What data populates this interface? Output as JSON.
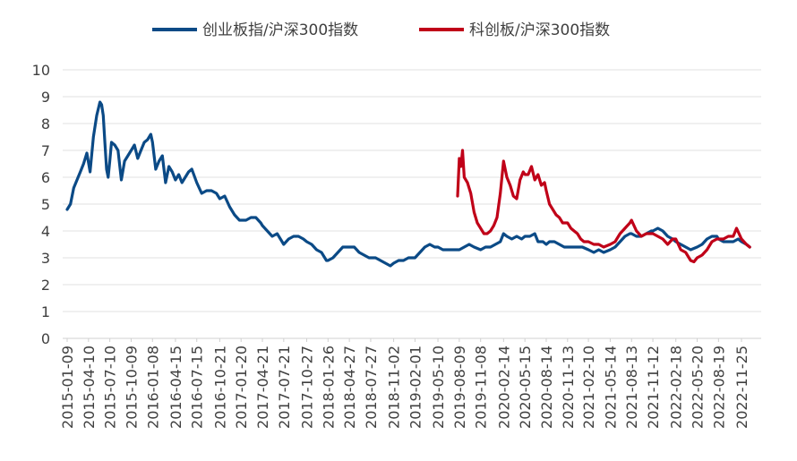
{
  "chart_data": {
    "type": "line",
    "title": "",
    "xlabel": "",
    "ylabel": "",
    "ylim": [
      0,
      10
    ],
    "yticks": [
      0,
      1,
      2,
      3,
      4,
      5,
      6,
      7,
      8,
      9,
      10
    ],
    "grid": true,
    "legend_position": "top",
    "x_ticks": [
      "2015-01-09",
      "2015-04-10",
      "2015-07-10",
      "2015-10-09",
      "2016-01-08",
      "2016-04-15",
      "2016-07-15",
      "2016-10-21",
      "2017-01-20",
      "2017-04-21",
      "2017-07-21",
      "2017-10-27",
      "2018-01-26",
      "2018-04-27",
      "2018-07-27",
      "2018-11-02",
      "2019-02-01",
      "2019-05-10",
      "2019-08-09",
      "2019-11-08",
      "2020-02-14",
      "2020-05-15",
      "2020-08-14",
      "2020-11-13",
      "2021-02-10",
      "2021-05-14",
      "2021-08-13",
      "2021-11-12",
      "2022-02-18",
      "2022-05-20",
      "2022-08-19",
      "2022-11-25"
    ],
    "series": [
      {
        "name": "创业板指/沪深300指数",
        "color": "#0b4a86",
        "points": [
          [
            "2015-01-09",
            4.8
          ],
          [
            "2015-01-23",
            5.0
          ],
          [
            "2015-02-06",
            5.6
          ],
          [
            "2015-02-20",
            5.9
          ],
          [
            "2015-03-06",
            6.2
          ],
          [
            "2015-03-20",
            6.5
          ],
          [
            "2015-04-03",
            6.9
          ],
          [
            "2015-04-17",
            6.2
          ],
          [
            "2015-05-01",
            7.5
          ],
          [
            "2015-05-15",
            8.3
          ],
          [
            "2015-05-29",
            8.8
          ],
          [
            "2015-06-05",
            8.7
          ],
          [
            "2015-06-12",
            8.3
          ],
          [
            "2015-06-19",
            7.3
          ],
          [
            "2015-06-26",
            6.3
          ],
          [
            "2015-07-03",
            6.0
          ],
          [
            "2015-07-10",
            6.6
          ],
          [
            "2015-07-17",
            7.3
          ],
          [
            "2015-07-31",
            7.2
          ],
          [
            "2015-08-14",
            7.0
          ],
          [
            "2015-08-28",
            5.9
          ],
          [
            "2015-09-11",
            6.6
          ],
          [
            "2015-09-25",
            6.8
          ],
          [
            "2015-10-09",
            7.0
          ],
          [
            "2015-10-23",
            7.2
          ],
          [
            "2015-11-06",
            6.7
          ],
          [
            "2015-11-20",
            7.0
          ],
          [
            "2015-12-04",
            7.3
          ],
          [
            "2015-12-18",
            7.4
          ],
          [
            "2016-01-01",
            7.6
          ],
          [
            "2016-01-08",
            7.3
          ],
          [
            "2016-01-22",
            6.3
          ],
          [
            "2016-02-05",
            6.6
          ],
          [
            "2016-02-19",
            6.8
          ],
          [
            "2016-03-04",
            5.8
          ],
          [
            "2016-03-18",
            6.4
          ],
          [
            "2016-04-01",
            6.2
          ],
          [
            "2016-04-15",
            5.9
          ],
          [
            "2016-04-29",
            6.1
          ],
          [
            "2016-05-13",
            5.8
          ],
          [
            "2016-05-27",
            6.0
          ],
          [
            "2016-06-10",
            6.2
          ],
          [
            "2016-06-24",
            6.3
          ],
          [
            "2016-07-15",
            5.8
          ],
          [
            "2016-08-05",
            5.4
          ],
          [
            "2016-08-26",
            5.5
          ],
          [
            "2016-09-16",
            5.5
          ],
          [
            "2016-10-07",
            5.4
          ],
          [
            "2016-10-21",
            5.2
          ],
          [
            "2016-11-11",
            5.3
          ],
          [
            "2016-12-02",
            4.9
          ],
          [
            "2016-12-23",
            4.6
          ],
          [
            "2017-01-13",
            4.4
          ],
          [
            "2017-01-20",
            4.4
          ],
          [
            "2017-02-10",
            4.4
          ],
          [
            "2017-03-03",
            4.5
          ],
          [
            "2017-03-24",
            4.5
          ],
          [
            "2017-04-14",
            4.3
          ],
          [
            "2017-04-21",
            4.2
          ],
          [
            "2017-05-12",
            4.0
          ],
          [
            "2017-06-02",
            3.8
          ],
          [
            "2017-06-23",
            3.9
          ],
          [
            "2017-07-14",
            3.6
          ],
          [
            "2017-07-21",
            3.5
          ],
          [
            "2017-08-11",
            3.7
          ],
          [
            "2017-09-01",
            3.8
          ],
          [
            "2017-09-22",
            3.8
          ],
          [
            "2017-10-13",
            3.7
          ],
          [
            "2017-10-27",
            3.6
          ],
          [
            "2017-11-17",
            3.5
          ],
          [
            "2017-12-08",
            3.3
          ],
          [
            "2017-12-29",
            3.2
          ],
          [
            "2018-01-19",
            2.9
          ],
          [
            "2018-01-26",
            2.9
          ],
          [
            "2018-02-16",
            3.0
          ],
          [
            "2018-03-09",
            3.2
          ],
          [
            "2018-03-30",
            3.4
          ],
          [
            "2018-04-20",
            3.4
          ],
          [
            "2018-04-27",
            3.4
          ],
          [
            "2018-05-18",
            3.4
          ],
          [
            "2018-06-08",
            3.2
          ],
          [
            "2018-06-29",
            3.1
          ],
          [
            "2018-07-20",
            3.0
          ],
          [
            "2018-07-27",
            3.0
          ],
          [
            "2018-08-17",
            3.0
          ],
          [
            "2018-09-07",
            2.9
          ],
          [
            "2018-09-28",
            2.8
          ],
          [
            "2018-10-19",
            2.7
          ],
          [
            "2018-11-02",
            2.8
          ],
          [
            "2018-11-23",
            2.9
          ],
          [
            "2018-12-14",
            2.9
          ],
          [
            "2019-01-04",
            3.0
          ],
          [
            "2019-02-01",
            3.0
          ],
          [
            "2019-02-22",
            3.2
          ],
          [
            "2019-03-15",
            3.4
          ],
          [
            "2019-04-05",
            3.5
          ],
          [
            "2019-04-26",
            3.4
          ],
          [
            "2019-05-10",
            3.4
          ],
          [
            "2019-05-31",
            3.3
          ],
          [
            "2019-06-21",
            3.3
          ],
          [
            "2019-07-12",
            3.3
          ],
          [
            "2019-08-09",
            3.3
          ],
          [
            "2019-08-30",
            3.4
          ],
          [
            "2019-09-20",
            3.5
          ],
          [
            "2019-10-11",
            3.4
          ],
          [
            "2019-11-08",
            3.3
          ],
          [
            "2019-11-29",
            3.4
          ],
          [
            "2019-12-20",
            3.4
          ],
          [
            "2020-01-10",
            3.5
          ],
          [
            "2020-01-31",
            3.6
          ],
          [
            "2020-02-14",
            3.9
          ],
          [
            "2020-02-28",
            3.8
          ],
          [
            "2020-03-20",
            3.7
          ],
          [
            "2020-04-10",
            3.8
          ],
          [
            "2020-05-01",
            3.7
          ],
          [
            "2020-05-15",
            3.8
          ],
          [
            "2020-06-05",
            3.8
          ],
          [
            "2020-06-26",
            3.9
          ],
          [
            "2020-07-10",
            3.6
          ],
          [
            "2020-07-31",
            3.6
          ],
          [
            "2020-08-14",
            3.5
          ],
          [
            "2020-08-28",
            3.6
          ],
          [
            "2020-09-18",
            3.6
          ],
          [
            "2020-10-09",
            3.5
          ],
          [
            "2020-10-30",
            3.4
          ],
          [
            "2020-11-13",
            3.4
          ],
          [
            "2020-12-04",
            3.4
          ],
          [
            "2020-12-25",
            3.4
          ],
          [
            "2021-01-15",
            3.4
          ],
          [
            "2021-02-10",
            3.3
          ],
          [
            "2021-03-05",
            3.2
          ],
          [
            "2021-03-26",
            3.3
          ],
          [
            "2021-04-16",
            3.2
          ],
          [
            "2021-05-14",
            3.3
          ],
          [
            "2021-06-04",
            3.4
          ],
          [
            "2021-06-25",
            3.6
          ],
          [
            "2021-07-16",
            3.8
          ],
          [
            "2021-08-06",
            3.9
          ],
          [
            "2021-08-13",
            3.9
          ],
          [
            "2021-09-03",
            3.8
          ],
          [
            "2021-09-24",
            3.8
          ],
          [
            "2021-10-15",
            3.9
          ],
          [
            "2021-11-05",
            4.0
          ],
          [
            "2021-11-12",
            4.0
          ],
          [
            "2021-12-03",
            4.1
          ],
          [
            "2021-12-24",
            4.0
          ],
          [
            "2022-01-14",
            3.8
          ],
          [
            "2022-02-04",
            3.7
          ],
          [
            "2022-02-18",
            3.6
          ],
          [
            "2022-03-11",
            3.5
          ],
          [
            "2022-04-01",
            3.4
          ],
          [
            "2022-04-22",
            3.3
          ],
          [
            "2022-05-20",
            3.4
          ],
          [
            "2022-06-10",
            3.5
          ],
          [
            "2022-07-01",
            3.7
          ],
          [
            "2022-07-22",
            3.8
          ],
          [
            "2022-08-12",
            3.8
          ],
          [
            "2022-08-19",
            3.7
          ],
          [
            "2022-09-09",
            3.6
          ],
          [
            "2022-09-30",
            3.6
          ],
          [
            "2022-10-21",
            3.6
          ],
          [
            "2022-11-11",
            3.7
          ],
          [
            "2022-11-25",
            3.6
          ],
          [
            "2022-12-16",
            3.5
          ],
          [
            "2022-12-30",
            3.4
          ]
        ]
      },
      {
        "name": "科创板/沪深300指数",
        "color": "#c00018",
        "points": [
          [
            "2019-08-02",
            5.3
          ],
          [
            "2019-08-09",
            6.7
          ],
          [
            "2019-08-16",
            6.4
          ],
          [
            "2019-08-23",
            7.0
          ],
          [
            "2019-08-30",
            6.0
          ],
          [
            "2019-09-13",
            5.8
          ],
          [
            "2019-09-27",
            5.4
          ],
          [
            "2019-10-11",
            4.7
          ],
          [
            "2019-10-25",
            4.3
          ],
          [
            "2019-11-08",
            4.1
          ],
          [
            "2019-11-22",
            3.9
          ],
          [
            "2019-12-06",
            3.9
          ],
          [
            "2019-12-20",
            4.0
          ],
          [
            "2020-01-03",
            4.2
          ],
          [
            "2020-01-17",
            4.5
          ],
          [
            "2020-01-31",
            5.4
          ],
          [
            "2020-02-14",
            6.6
          ],
          [
            "2020-02-28",
            6.0
          ],
          [
            "2020-03-13",
            5.7
          ],
          [
            "2020-03-27",
            5.3
          ],
          [
            "2020-04-10",
            5.2
          ],
          [
            "2020-04-24",
            5.9
          ],
          [
            "2020-05-08",
            6.2
          ],
          [
            "2020-05-15",
            6.1
          ],
          [
            "2020-05-29",
            6.1
          ],
          [
            "2020-06-12",
            6.4
          ],
          [
            "2020-06-26",
            5.9
          ],
          [
            "2020-07-10",
            6.1
          ],
          [
            "2020-07-24",
            5.7
          ],
          [
            "2020-08-07",
            5.8
          ],
          [
            "2020-08-14",
            5.5
          ],
          [
            "2020-08-28",
            5.0
          ],
          [
            "2020-09-11",
            4.8
          ],
          [
            "2020-09-25",
            4.6
          ],
          [
            "2020-10-09",
            4.5
          ],
          [
            "2020-10-23",
            4.3
          ],
          [
            "2020-11-13",
            4.3
          ],
          [
            "2020-11-27",
            4.1
          ],
          [
            "2020-12-11",
            4.0
          ],
          [
            "2020-12-25",
            3.9
          ],
          [
            "2021-01-08",
            3.7
          ],
          [
            "2021-01-22",
            3.6
          ],
          [
            "2021-02-10",
            3.6
          ],
          [
            "2021-03-05",
            3.5
          ],
          [
            "2021-03-26",
            3.5
          ],
          [
            "2021-04-16",
            3.4
          ],
          [
            "2021-05-14",
            3.5
          ],
          [
            "2021-06-04",
            3.6
          ],
          [
            "2021-06-25",
            3.9
          ],
          [
            "2021-07-16",
            4.1
          ],
          [
            "2021-08-06",
            4.3
          ],
          [
            "2021-08-13",
            4.4
          ],
          [
            "2021-09-03",
            4.0
          ],
          [
            "2021-09-24",
            3.8
          ],
          [
            "2021-10-15",
            3.9
          ],
          [
            "2021-11-05",
            3.9
          ],
          [
            "2021-11-12",
            3.9
          ],
          [
            "2021-12-03",
            3.8
          ],
          [
            "2021-12-24",
            3.7
          ],
          [
            "2022-01-14",
            3.5
          ],
          [
            "2022-02-04",
            3.7
          ],
          [
            "2022-02-18",
            3.7
          ],
          [
            "2022-03-11",
            3.3
          ],
          [
            "2022-04-01",
            3.2
          ],
          [
            "2022-04-22",
            2.9
          ],
          [
            "2022-05-06",
            2.85
          ],
          [
            "2022-05-20",
            3.0
          ],
          [
            "2022-06-10",
            3.1
          ],
          [
            "2022-07-01",
            3.3
          ],
          [
            "2022-07-22",
            3.6
          ],
          [
            "2022-08-12",
            3.7
          ],
          [
            "2022-08-19",
            3.7
          ],
          [
            "2022-09-09",
            3.7
          ],
          [
            "2022-09-30",
            3.8
          ],
          [
            "2022-10-21",
            3.8
          ],
          [
            "2022-11-04",
            4.1
          ],
          [
            "2022-11-25",
            3.7
          ],
          [
            "2022-12-16",
            3.5
          ],
          [
            "2022-12-30",
            3.4
          ]
        ]
      }
    ]
  }
}
